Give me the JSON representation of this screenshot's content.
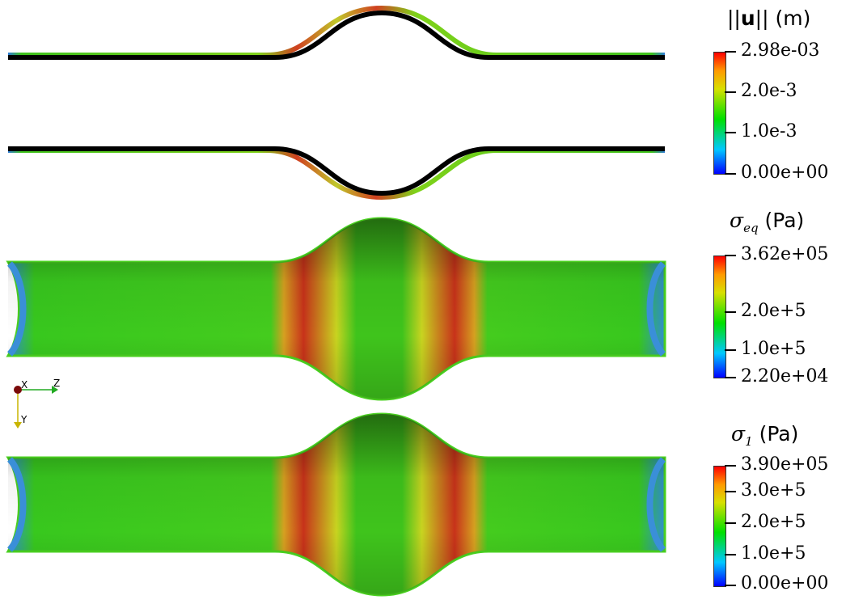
{
  "colorbars": [
    {
      "title_norm": "||",
      "title_bold": "u",
      "title_unit": " (m)",
      "labels": [
        "2.98e-03",
        "2.0e-3",
        "1.0e-3",
        "0.00e+00"
      ]
    },
    {
      "title_symbol": "σ",
      "title_sub": "eq",
      "title_unit": " (Pa)",
      "labels": [
        "3.62e+05",
        "2.0e+5",
        "1.0e+5",
        "2.20e+04"
      ]
    },
    {
      "title_symbol": "σ",
      "title_sub": "1",
      "title_unit": "  (Pa)",
      "labels": [
        "3.90e+05",
        "3.0e+5",
        "2.0e+5",
        "1.0e+5",
        "0.00e+00"
      ]
    }
  ],
  "axes_widget": {
    "x": "X",
    "y": "Y",
    "z": "Z"
  },
  "colors": {
    "reference_outline": "#000000",
    "vessel_low": "#2ecc1a",
    "vessel_high": "#c8321a",
    "background": "#ffffff"
  }
}
